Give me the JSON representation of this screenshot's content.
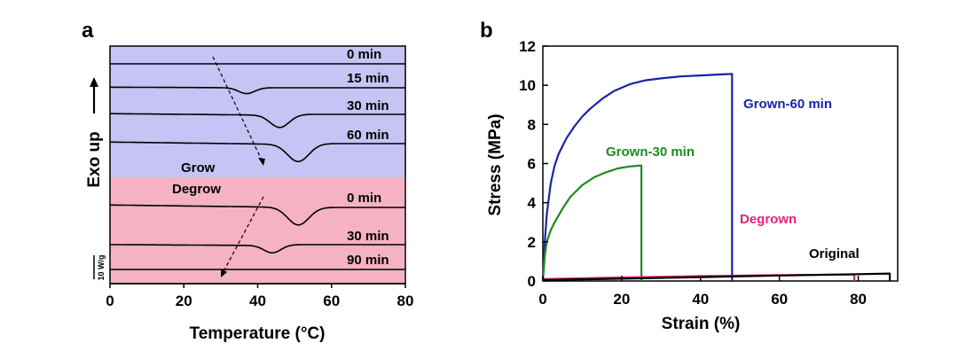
{
  "chart_data": [
    {
      "type": "line",
      "panel_label": "a",
      "xlabel": "Temperature (°C)",
      "ylabel": "Exo up",
      "xlim": [
        0,
        80
      ],
      "xticks": [
        "0",
        "20",
        "40",
        "60",
        "80"
      ],
      "scale_bar_label": "10 W/g",
      "sections": [
        {
          "name": "Grow",
          "color": "#c6c4f4"
        },
        {
          "name": "Degrow",
          "color": "#f5b2c4"
        }
      ],
      "series": [
        {
          "name": "0 min",
          "section": "Grow",
          "peak_x": null,
          "depth": 0
        },
        {
          "name": "15 min",
          "section": "Grow",
          "peak_x": 37,
          "depth": 0.6
        },
        {
          "name": "30 min",
          "section": "Grow",
          "peak_x": 46,
          "depth": 1.3
        },
        {
          "name": "60 min",
          "section": "Grow",
          "peak_x": 51,
          "depth": 1.8
        },
        {
          "name": "0 min",
          "section": "Degrow",
          "peak_x": 51,
          "depth": 1.8
        },
        {
          "name": "30 min",
          "section": "Degrow",
          "peak_x": 44,
          "depth": 0.8
        },
        {
          "name": "90 min",
          "section": "Degrow",
          "peak_x": null,
          "depth": 0
        }
      ]
    },
    {
      "type": "line",
      "panel_label": "b",
      "xlabel": "Strain (%)",
      "ylabel": "Stress (MPa)",
      "xlim": [
        0,
        90
      ],
      "ylim": [
        0,
        12
      ],
      "xticks": [
        0,
        20,
        40,
        60,
        80
      ],
      "yticks": [
        0,
        2,
        4,
        6,
        8,
        10,
        12
      ],
      "series": [
        {
          "name": "Grown-60 min",
          "color": "#1a23a6",
          "x": [
            0,
            0.5,
            1,
            2,
            3,
            4,
            6,
            8,
            10,
            12,
            15,
            18,
            22,
            26,
            30,
            35,
            40,
            45,
            48,
            48
          ],
          "y": [
            0,
            2.0,
            3.4,
            5.0,
            5.9,
            6.5,
            7.3,
            7.9,
            8.4,
            8.8,
            9.3,
            9.7,
            10.05,
            10.25,
            10.35,
            10.45,
            10.5,
            10.55,
            10.58,
            0
          ]
        },
        {
          "name": "Grown-30 min",
          "color": "#1e8a1e",
          "x": [
            0,
            0.5,
            1,
            2,
            3,
            5,
            7,
            10,
            13,
            16,
            19,
            22,
            25,
            25
          ],
          "y": [
            0,
            1.3,
            2.0,
            2.6,
            3.0,
            3.7,
            4.3,
            4.9,
            5.3,
            5.55,
            5.75,
            5.85,
            5.9,
            0
          ]
        },
        {
          "name": "Degrown",
          "color": "#e0237f",
          "x": [
            0,
            20,
            40,
            60,
            79,
            79
          ],
          "y": [
            0.1,
            0.18,
            0.25,
            0.3,
            0.33,
            0
          ]
        },
        {
          "name": "Original",
          "color": "#000000",
          "x": [
            0,
            20,
            40,
            60,
            80,
            88,
            88
          ],
          "y": [
            0.05,
            0.12,
            0.2,
            0.28,
            0.35,
            0.38,
            0
          ]
        }
      ]
    }
  ]
}
